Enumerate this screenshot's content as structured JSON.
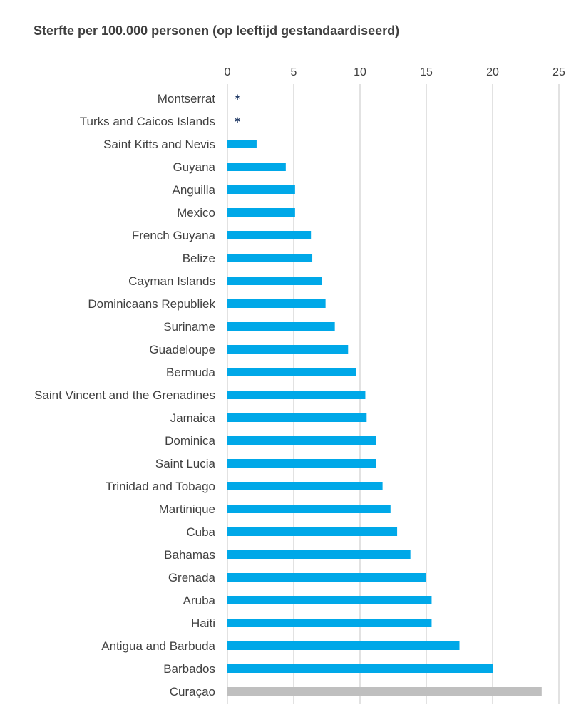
{
  "chart_data": {
    "type": "bar",
    "orientation": "horizontal",
    "title": "Sterfte per 100.000 personen (op leeftijd gestandaardiseerd)",
    "xlim": [
      0,
      25
    ],
    "xticks": [
      0,
      5,
      10,
      15,
      20,
      25
    ],
    "grid": "vertical",
    "x_axis_position": "top",
    "bar_color": "#00a8e8",
    "highlight_color": "#bfbfbf",
    "marker_color": "#1f3864",
    "categories": [
      "Montserrat",
      "Turks and Caicos Islands",
      "Saint Kitts and Nevis",
      "Guyana",
      "Anguilla",
      "Mexico",
      "French Guyana",
      "Belize",
      "Cayman Islands",
      "Dominicaans Republiek",
      "Suriname",
      "Guadeloupe",
      "Bermuda",
      "Saint Vincent and the Grenadines",
      "Jamaica",
      "Dominica",
      "Saint Lucia",
      "Trinidad and Tobago",
      "Martinique",
      "Cuba",
      "Bahamas",
      "Grenada",
      "Aruba",
      "Haiti",
      "Antigua and Barbuda",
      "Barbados",
      "Curaçao"
    ],
    "values": [
      null,
      null,
      2.2,
      4.4,
      5.1,
      5.1,
      6.3,
      6.4,
      7.1,
      7.4,
      8.1,
      9.1,
      9.7,
      10.4,
      10.5,
      11.2,
      11.2,
      11.7,
      12.3,
      12.8,
      13.8,
      15.0,
      15.4,
      15.4,
      17.5,
      20.0,
      23.7
    ],
    "markers": [
      "*",
      "*"
    ],
    "highlight_index": 26
  }
}
